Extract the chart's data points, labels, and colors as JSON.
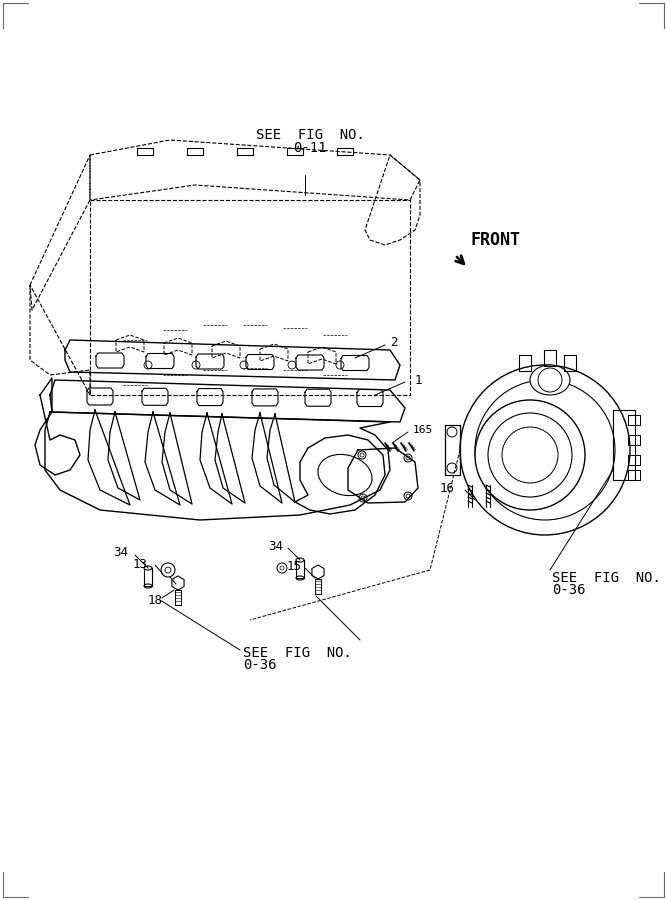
{
  "bg_color": "#ffffff",
  "line_color": "#000000",
  "fig_width": 6.67,
  "fig_height": 9.0,
  "dpi": 100,
  "labels": {
    "see_fig_top": "SEE  FIG  NO.",
    "see_fig_top_num": "0-11",
    "front_text": "FRONT",
    "label_2": "2",
    "label_1": "1",
    "label_165": "165",
    "label_16": "16",
    "see_fig_right": "SEE  FIG  NO.",
    "see_fig_right_num": "0-36",
    "label_34a": "34",
    "label_13": "13",
    "label_18": "18",
    "label_34b": "34",
    "label_15": "15",
    "see_fig_bottom": "SEE  FIG  NO.",
    "see_fig_bottom_num": "0-36"
  },
  "font_size_labels": 10,
  "font_size_numbers": 9,
  "font_size_front": 12
}
